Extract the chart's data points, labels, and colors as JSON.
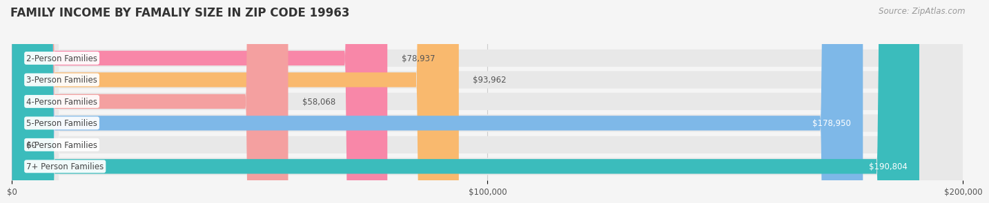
{
  "title": "FAMILY INCOME BY FAMALIY SIZE IN ZIP CODE 19963",
  "source": "Source: ZipAtlas.com",
  "categories": [
    "2-Person Families",
    "3-Person Families",
    "4-Person Families",
    "5-Person Families",
    "6-Person Families",
    "7+ Person Families"
  ],
  "values": [
    78937,
    93962,
    58068,
    178950,
    0,
    190804
  ],
  "bar_colors": [
    "#F887A8",
    "#F9B96E",
    "#F4A0A0",
    "#7EB8E8",
    "#C8A8D8",
    "#3BBCBC"
  ],
  "label_colors": [
    "#555555",
    "#555555",
    "#555555",
    "#ffffff",
    "#555555",
    "#ffffff"
  ],
  "value_labels": [
    "$78,937",
    "$93,962",
    "$58,068",
    "$178,950",
    "$0",
    "$190,804"
  ],
  "xlim": [
    0,
    200000
  ],
  "xticks": [
    0,
    100000,
    200000
  ],
  "xtick_labels": [
    "$0",
    "$100,000",
    "$200,000"
  ],
  "background_color": "#f5f5f5",
  "bar_bg_color": "#e8e8e8",
  "title_fontsize": 12,
  "source_fontsize": 8.5,
  "label_fontsize": 8.5,
  "value_fontsize": 8.5
}
